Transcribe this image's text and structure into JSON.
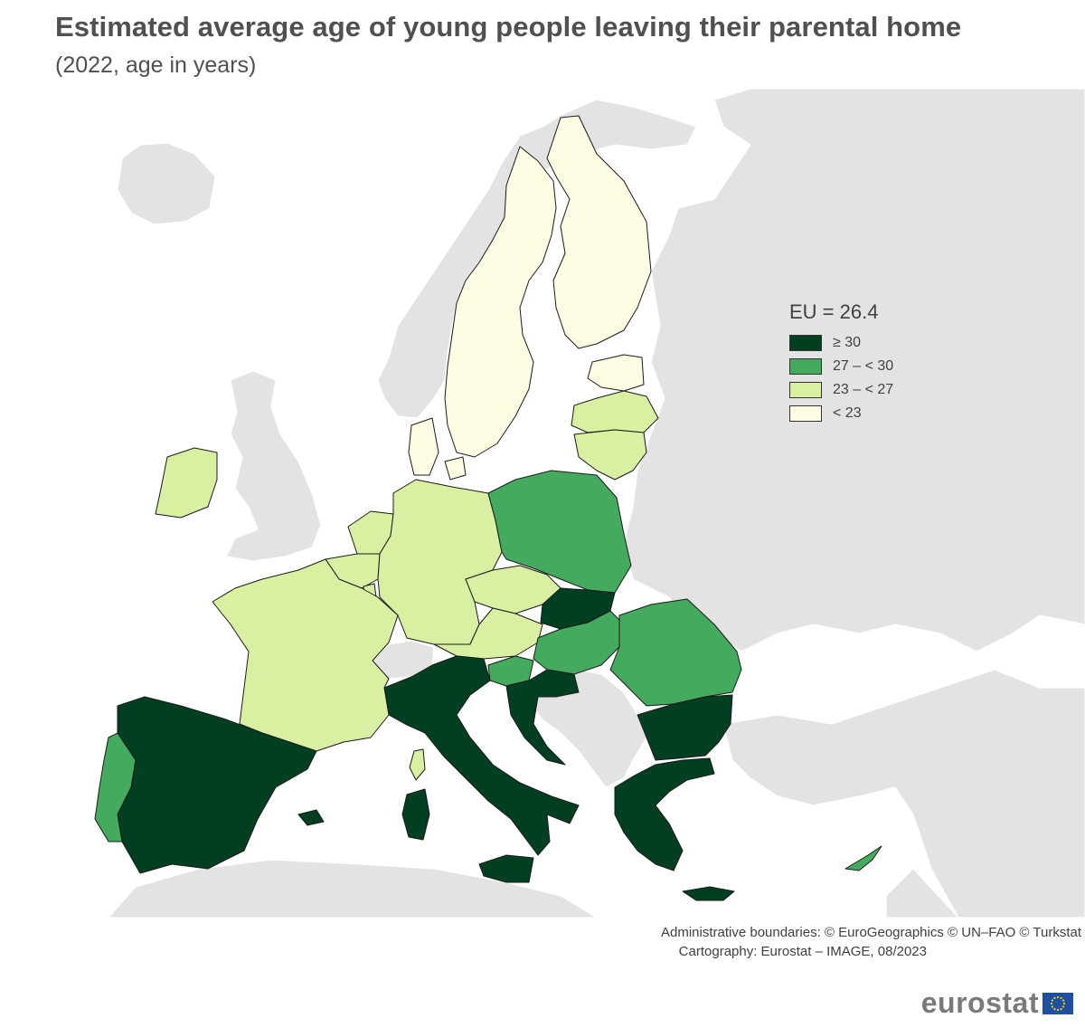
{
  "title": "Estimated average age of young people leaving their parental home",
  "subtitle": "(2022, age in years)",
  "legend": {
    "title": "EU = 26.4",
    "items": [
      {
        "label": "≥ 30",
        "color": "#003f22"
      },
      {
        "label": "27 – < 30",
        "color": "#44ab5e"
      },
      {
        "label": "23 – < 27",
        "color": "#d9f0a3"
      },
      {
        "label": "< 23",
        "color": "#fcfde3"
      }
    ]
  },
  "colors": {
    "sea": "#ffffff",
    "non_eu_land": "#e3e3e3",
    "border": "#1a1a1a"
  },
  "credits": {
    "line1": "Administrative boundaries: © EuroGeographics © UN–FAO © Turkstat",
    "line2": "Cartography: Eurostat – IMAGE, 08/2023"
  },
  "logo": {
    "text": "eurostat",
    "icon": "eu-flag-icon"
  }
}
